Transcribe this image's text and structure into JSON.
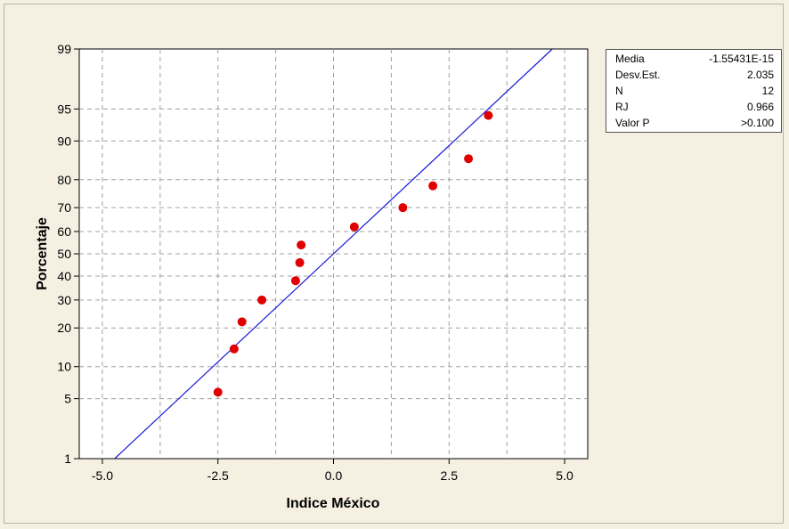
{
  "colors": {
    "line": "#1a1ad6",
    "points": "#e00000",
    "grid": "#a0a0a0",
    "background": "#f5f0e1"
  },
  "chart_data": {
    "type": "scatter",
    "subtype": "normal-probability-plot",
    "title": "",
    "xlabel": "Indice México",
    "ylabel": "Porcentaje",
    "xlim": [
      -5.5,
      5.5
    ],
    "ylim": [
      1,
      99
    ],
    "y_scale": "normal-probability",
    "grid": true,
    "x_ticks": [
      -5.0,
      -2.5,
      0.0,
      2.5,
      5.0
    ],
    "x_tick_labels": [
      "-5.0",
      "-2.5",
      "0.0",
      "2.5",
      "5.0"
    ],
    "y_ticks": [
      1,
      5,
      10,
      20,
      30,
      40,
      50,
      60,
      70,
      80,
      90,
      95,
      99
    ],
    "y_tick_labels": [
      "1",
      "5",
      "10",
      "20",
      "30",
      "40",
      "50",
      "60",
      "70",
      "80",
      "90",
      "95",
      "99"
    ],
    "points": [
      {
        "x": -2.5,
        "y": 5.8
      },
      {
        "x": -2.15,
        "y": 14.0
      },
      {
        "x": -1.98,
        "y": 22.0
      },
      {
        "x": -1.55,
        "y": 30.0
      },
      {
        "x": -0.82,
        "y": 38.0
      },
      {
        "x": -0.73,
        "y": 46.0
      },
      {
        "x": -0.7,
        "y": 54.0
      },
      {
        "x": 0.45,
        "y": 62.0
      },
      {
        "x": 1.5,
        "y": 70.0
      },
      {
        "x": 2.15,
        "y": 78.0
      },
      {
        "x": 2.92,
        "y": 86.0
      },
      {
        "x": 3.35,
        "y": 94.2
      }
    ],
    "fit_line": {
      "mean": 0.0,
      "stdev": 2.035
    },
    "legend": "top-right"
  },
  "stats_box": [
    {
      "label": "Media",
      "value": "-1.55431E-15"
    },
    {
      "label": "Desv.Est.",
      "value": "2.035"
    },
    {
      "label": "N",
      "value": "12"
    },
    {
      "label": "RJ",
      "value": "0.966"
    },
    {
      "label": "Valor P",
      "value": ">0.100"
    }
  ]
}
